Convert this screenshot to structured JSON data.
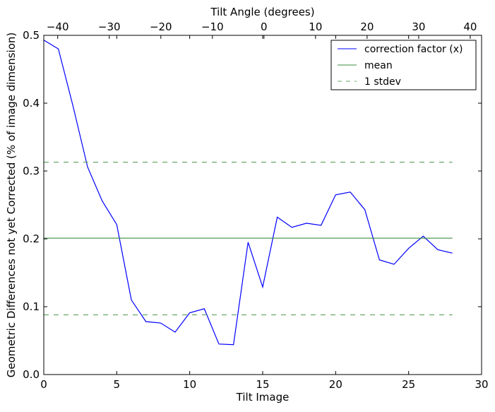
{
  "chart_data": {
    "type": "line",
    "xlabel": "Tilt Image",
    "ylabel": "Geometric Differences not yet Corrected (% of image dimension)",
    "top_xlabel": "Tilt Angle (degrees)",
    "xlim": [
      0,
      30
    ],
    "ylim": [
      0,
      0.5
    ],
    "top_xlim": [
      -42.7,
      42.2
    ],
    "xticks": [
      0,
      5,
      10,
      15,
      20,
      25,
      30
    ],
    "xtick_labels": [
      "0",
      "5",
      "10",
      "15",
      "20",
      "25",
      "30"
    ],
    "yticks": [
      0,
      0.1,
      0.2,
      0.3,
      0.4,
      0.5
    ],
    "ytick_labels": [
      "0.0",
      "0.1",
      "0.2",
      "0.3",
      "0.4",
      "0.5"
    ],
    "top_xticks": [
      -40,
      -30,
      -20,
      -10,
      0,
      10,
      20,
      30,
      40
    ],
    "top_xtick_labels": [
      "−40",
      "−30",
      "−20",
      "−10",
      "0",
      "10",
      "20",
      "30",
      "40"
    ],
    "grid": false,
    "legend_position": "top-right",
    "series": [
      {
        "name": "correction factor (x)",
        "color": "#0000ff",
        "style": "solid",
        "x": [
          0,
          1,
          2,
          3,
          4,
          5,
          6,
          7,
          8,
          9,
          10,
          11,
          12,
          13,
          14,
          15,
          16,
          17,
          18,
          19,
          20,
          21,
          22,
          23,
          24,
          25,
          26,
          27,
          28
        ],
        "values": [
          0.493,
          0.48,
          0.396,
          0.306,
          0.256,
          0.221,
          0.11,
          0.078,
          0.076,
          0.0625,
          0.091,
          0.097,
          0.045,
          0.044,
          0.195,
          0.129,
          0.232,
          0.217,
          0.223,
          0.22,
          0.265,
          0.269,
          0.243,
          0.169,
          0.1625,
          0.186,
          0.204,
          0.184,
          0.179
        ]
      },
      {
        "name": "mean",
        "color": "#3c8c3c",
        "style": "solid",
        "x": [
          0,
          28
        ],
        "values": [
          0.201,
          0.201
        ]
      },
      {
        "name": "1 stdev",
        "color": "#6aa86a",
        "style": "dashed",
        "x": [
          0,
          28
        ],
        "values": [
          0.313,
          0.313
        ]
      },
      {
        "name": "1 stdev (lower)",
        "color": "#6aa86a",
        "style": "dashed",
        "x": [
          0,
          28
        ],
        "values": [
          0.088,
          0.088
        ],
        "legend": false
      }
    ]
  }
}
